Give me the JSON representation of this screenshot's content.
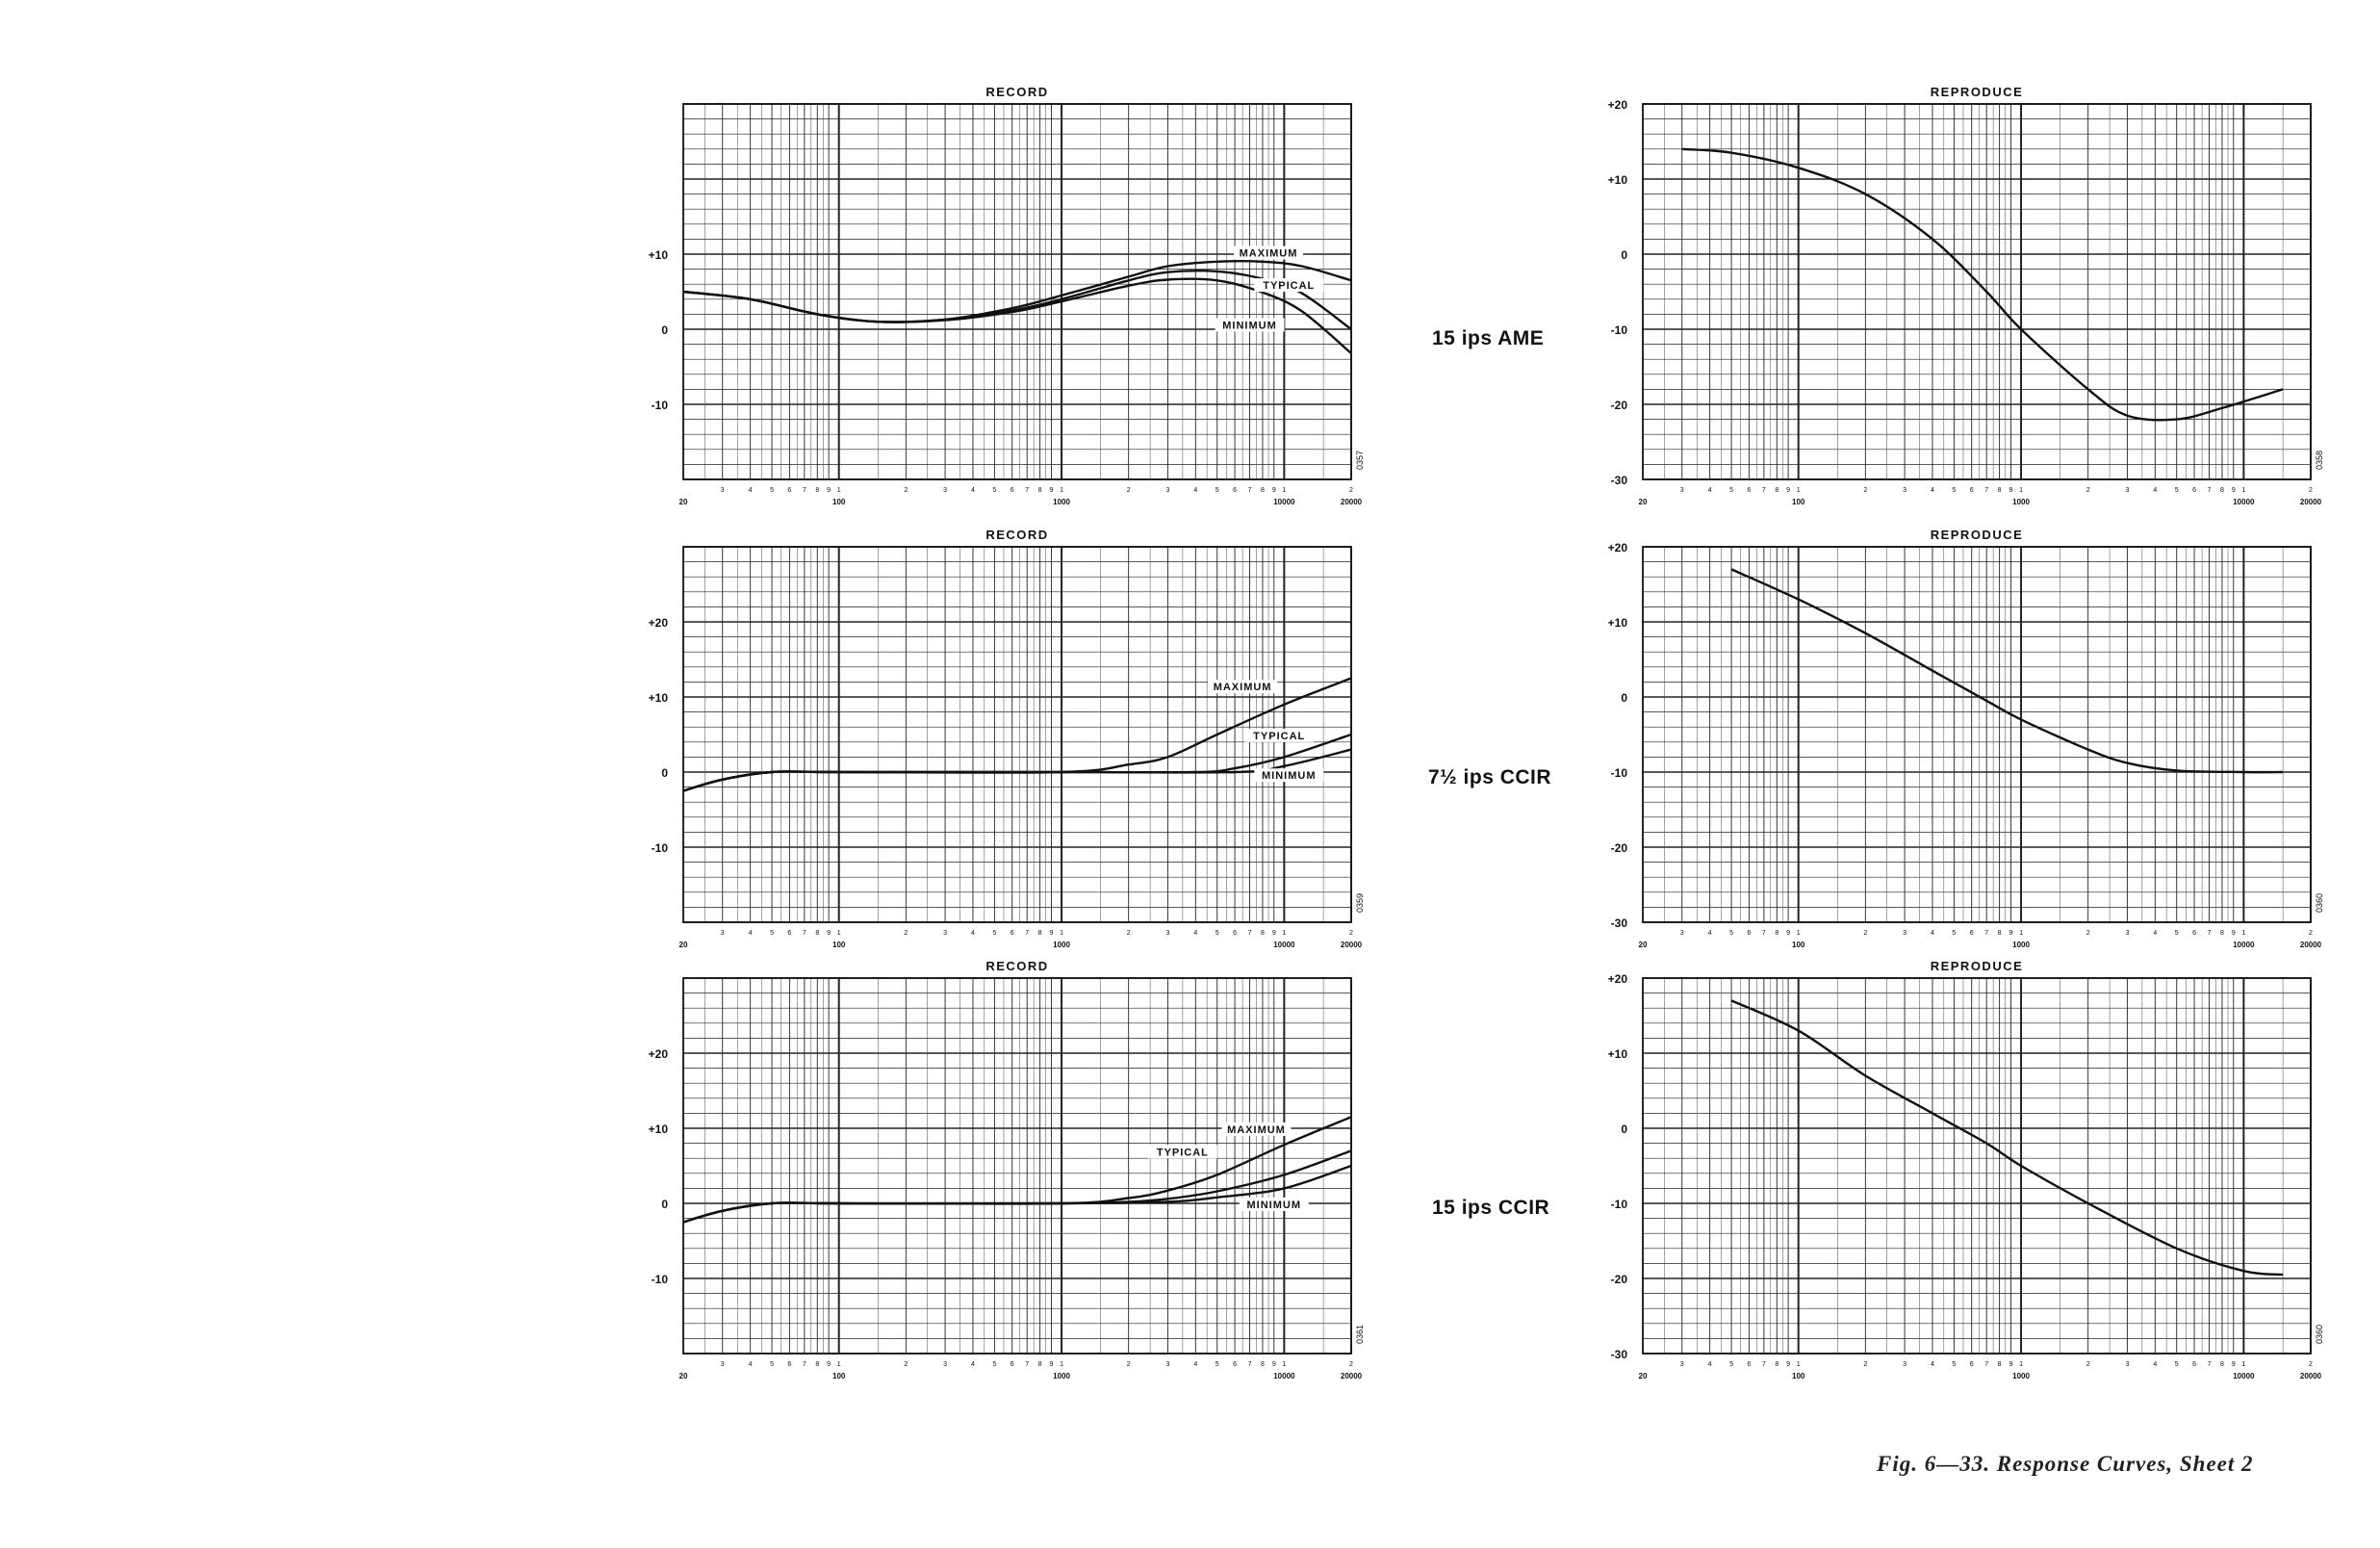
{
  "figure": {
    "caption": "Fig. 6—33.  Response Curves,  Sheet 2",
    "speed_labels": [
      "15 ips AME",
      "7½ ips CCIR",
      "15 ips CCIR"
    ]
  },
  "axis": {
    "x_major_labels": [
      "20",
      "100",
      "1000",
      "10000",
      "20000"
    ],
    "x_minor_digits": [
      "2",
      "3",
      "4",
      "5",
      "6",
      "7",
      "8",
      "9",
      "1"
    ]
  },
  "chart_data": [
    {
      "type": "line",
      "title": "RECORD",
      "x_scale": "log",
      "xlim": [
        20,
        20000
      ],
      "ylim": [
        -20,
        30
      ],
      "y_tick_labels": [
        {
          "value": 10,
          "label": "+10"
        },
        {
          "value": 0,
          "label": "0"
        },
        {
          "value": -10,
          "label": "-10"
        }
      ],
      "chart_id": "0357",
      "series": [
        {
          "name": "MAXIMUM",
          "x": [
            20,
            40,
            80,
            150,
            300,
            600,
            1000,
            2000,
            3000,
            5000,
            8000,
            12000,
            20000
          ],
          "y": [
            5,
            4,
            2,
            1,
            1.3,
            2.8,
            4.5,
            7,
            8.4,
            9.0,
            9.0,
            8.4,
            6.5
          ]
        },
        {
          "name": "TYPICAL",
          "x": [
            20,
            40,
            80,
            150,
            300,
            600,
            1000,
            2000,
            3000,
            5000,
            8000,
            12000,
            20000
          ],
          "y": [
            5,
            4,
            2,
            1,
            1.3,
            2.5,
            4.0,
            6.5,
            7.6,
            7.7,
            6.7,
            4.8,
            0
          ]
        },
        {
          "name": "MINIMUM",
          "x": [
            20,
            40,
            80,
            150,
            300,
            600,
            1000,
            2000,
            3000,
            5000,
            8000,
            12000,
            20000
          ],
          "y": [
            5,
            4,
            2,
            1,
            1.2,
            2.3,
            3.7,
            5.8,
            6.6,
            6.5,
            4.9,
            2.4,
            -3.2
          ]
        }
      ],
      "annotations": [
        "MAXIMUM",
        "TYPICAL",
        "MINIMUM"
      ]
    },
    {
      "type": "line",
      "title": "REPRODUCE",
      "x_scale": "log",
      "xlim": [
        20,
        20000
      ],
      "ylim": [
        -30,
        20
      ],
      "y_tick_labels": [
        {
          "value": 20,
          "label": "+20"
        },
        {
          "value": 10,
          "label": "+10"
        },
        {
          "value": 0,
          "label": "0"
        },
        {
          "value": -10,
          "label": "-10"
        },
        {
          "value": -20,
          "label": "-20"
        },
        {
          "value": -30,
          "label": "-30"
        }
      ],
      "chart_id": "0358",
      "series": [
        {
          "x": [
            30,
            50,
            100,
            200,
            400,
            700,
            1000,
            2000,
            3000,
            5000,
            8000,
            15000
          ],
          "y": [
            14,
            13.5,
            11.5,
            8,
            2,
            -5,
            -10,
            -18,
            -21.5,
            -22,
            -20.5,
            -18
          ]
        }
      ]
    },
    {
      "type": "line",
      "title": "RECORD",
      "x_scale": "log",
      "xlim": [
        20,
        20000
      ],
      "ylim": [
        -20,
        30
      ],
      "y_tick_labels": [
        {
          "value": 20,
          "label": "+20"
        },
        {
          "value": 10,
          "label": "+10"
        },
        {
          "value": 0,
          "label": "0"
        },
        {
          "value": -10,
          "label": "-10"
        }
      ],
      "chart_id": "0359",
      "series": [
        {
          "name": "MAXIMUM",
          "x": [
            20,
            30,
            50,
            100,
            1000,
            2000,
            3000,
            5000,
            10000,
            20000
          ],
          "y": [
            -2.5,
            -1,
            0,
            0,
            0,
            1,
            2,
            5,
            9,
            12.5
          ]
        },
        {
          "name": "TYPICAL",
          "x": [
            20,
            30,
            50,
            100,
            1000,
            4000,
            6000,
            10000,
            20000
          ],
          "y": [
            -2.5,
            -1,
            0,
            0,
            0,
            0,
            0.5,
            2,
            5
          ]
        },
        {
          "name": "MINIMUM",
          "x": [
            20,
            30,
            50,
            100,
            1000,
            6000,
            10000,
            20000
          ],
          "y": [
            -2.5,
            -1,
            0,
            0,
            0,
            0,
            0.8,
            3
          ]
        }
      ],
      "annotations": [
        "MAXIMUM",
        "TYPICAL",
        "MINIMUM"
      ]
    },
    {
      "type": "line",
      "title": "REPRODUCE",
      "x_scale": "log",
      "xlim": [
        20,
        20000
      ],
      "ylim": [
        -30,
        20
      ],
      "y_tick_labels": [
        {
          "value": 20,
          "label": "+20"
        },
        {
          "value": 10,
          "label": "+10"
        },
        {
          "value": 0,
          "label": "0"
        },
        {
          "value": -10,
          "label": "-10"
        },
        {
          "value": -20,
          "label": "-20"
        },
        {
          "value": -30,
          "label": "-30"
        }
      ],
      "chart_id": "0360",
      "series": [
        {
          "x": [
            50,
            100,
            200,
            400,
            700,
            1000,
            2000,
            3000,
            5000,
            10000,
            15000
          ],
          "y": [
            17,
            13,
            8.5,
            3.5,
            -0.5,
            -3,
            -7,
            -8.8,
            -9.8,
            -10,
            -10
          ]
        }
      ]
    },
    {
      "type": "line",
      "title": "RECORD",
      "x_scale": "log",
      "xlim": [
        20,
        20000
      ],
      "ylim": [
        -20,
        30
      ],
      "y_tick_labels": [
        {
          "value": 20,
          "label": "+20"
        },
        {
          "value": 10,
          "label": "+10"
        },
        {
          "value": 0,
          "label": "0"
        },
        {
          "value": -10,
          "label": "-10"
        }
      ],
      "chart_id": "0361",
      "series": [
        {
          "name": "MAXIMUM",
          "x": [
            20,
            30,
            50,
            100,
            1000,
            2000,
            3000,
            5000,
            10000,
            20000
          ],
          "y": [
            -2.5,
            -1,
            0,
            0,
            0,
            0.7,
            1.7,
            3.8,
            7.8,
            11.5
          ]
        },
        {
          "name": "TYPICAL",
          "x": [
            20,
            30,
            50,
            100,
            1000,
            2000,
            3000,
            5000,
            10000,
            20000
          ],
          "y": [
            -2.5,
            -1,
            0,
            0,
            0,
            0.2,
            0.6,
            1.6,
            3.8,
            7
          ]
        },
        {
          "name": "MINIMUM",
          "x": [
            20,
            30,
            50,
            100,
            1000,
            3000,
            5000,
            10000,
            20000
          ],
          "y": [
            -2.5,
            -1,
            0,
            0,
            0,
            0.2,
            0.8,
            2,
            5
          ]
        }
      ],
      "annotations": [
        "MAXIMUM",
        "TYPICAL",
        "MINIMUM"
      ]
    },
    {
      "type": "line",
      "title": "REPRODUCE",
      "x_scale": "log",
      "xlim": [
        20,
        20000
      ],
      "ylim": [
        -30,
        20
      ],
      "y_tick_labels": [
        {
          "value": 20,
          "label": "+20"
        },
        {
          "value": 10,
          "label": "+10"
        },
        {
          "value": 0,
          "label": "0"
        },
        {
          "value": -10,
          "label": "-10"
        },
        {
          "value": -20,
          "label": "-20"
        },
        {
          "value": -30,
          "label": "-30"
        }
      ],
      "chart_id": "0360",
      "series": [
        {
          "x": [
            50,
            100,
            200,
            400,
            700,
            1000,
            2000,
            5000,
            10000,
            15000
          ],
          "y": [
            17,
            13,
            7,
            2,
            -2,
            -5,
            -10,
            -16,
            -19,
            -19.5
          ]
        }
      ]
    }
  ]
}
